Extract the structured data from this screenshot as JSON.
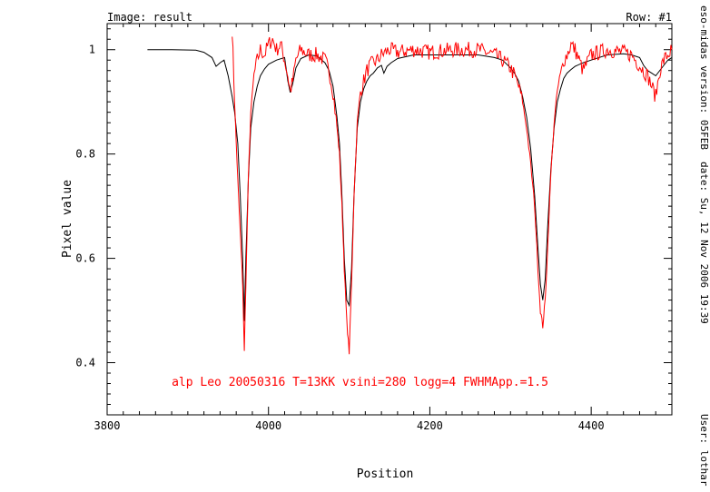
{
  "header": {
    "image_label": "Image: result",
    "row_label": "Row: #1"
  },
  "sidebar": {
    "version": "eso-midas version: 05FEB",
    "date": "date: Su, 12 Nov 2006 19:39",
    "user": "User: lothar"
  },
  "chart_data": {
    "type": "line",
    "xlabel": "Position",
    "ylabel": "Pixel value",
    "xlim": [
      3800,
      4500
    ],
    "ylim": [
      0.3,
      1.05
    ],
    "xticks": [
      3800,
      4000,
      4200,
      4400
    ],
    "xtick_labels": [
      "3800",
      "4000",
      "4200",
      "4400"
    ],
    "yticks": [
      0.4,
      0.6,
      0.8,
      1.0
    ],
    "ytick_labels": [
      "0.4",
      "0.6",
      "0.8",
      "1"
    ],
    "annotation": {
      "text": "alp Leo 20050316 T=13KK vsini=280 logg=4 FWHMApp.=1.5",
      "x": 3880,
      "y": 0.356,
      "color": "#ff0000"
    },
    "series": [
      {
        "color": "#000000",
        "x": [
          3850,
          3880,
          3910,
          3920,
          3930,
          3935,
          3940,
          3945,
          3950,
          3955,
          3958,
          3962,
          3965,
          3968,
          3970,
          3972,
          3975,
          3978,
          3982,
          3986,
          3990,
          3995,
          4000,
          4010,
          4020,
          4024,
          4027,
          4030,
          4034,
          4040,
          4050,
          4060,
          4070,
          4075,
          4080,
          4085,
          4088,
          4091,
          4094,
          4097,
          4100,
          4103,
          4106,
          4110,
          4114,
          4118,
          4122,
          4126,
          4130,
          4135,
          4140,
          4143,
          4147,
          4152,
          4160,
          4180,
          4200,
          4230,
          4260,
          4280,
          4290,
          4300,
          4305,
          4310,
          4315,
          4320,
          4325,
          4330,
          4334,
          4337,
          4340,
          4343,
          4346,
          4350,
          4354,
          4358,
          4362,
          4366,
          4370,
          4375,
          4380,
          4390,
          4400,
          4420,
          4440,
          4450,
          4460,
          4465,
          4470,
          4475,
          4480,
          4490,
          4495,
          4500
        ],
        "values": [
          1.0,
          1.0,
          0.999,
          0.995,
          0.985,
          0.968,
          0.975,
          0.98,
          0.95,
          0.91,
          0.88,
          0.82,
          0.72,
          0.6,
          0.48,
          0.6,
          0.75,
          0.85,
          0.9,
          0.93,
          0.95,
          0.963,
          0.972,
          0.98,
          0.985,
          0.94,
          0.918,
          0.935,
          0.965,
          0.983,
          0.99,
          0.988,
          0.975,
          0.96,
          0.93,
          0.87,
          0.82,
          0.72,
          0.6,
          0.52,
          0.51,
          0.58,
          0.72,
          0.85,
          0.9,
          0.925,
          0.94,
          0.95,
          0.955,
          0.965,
          0.97,
          0.955,
          0.968,
          0.975,
          0.983,
          0.99,
          0.99,
          0.99,
          0.99,
          0.985,
          0.98,
          0.965,
          0.955,
          0.94,
          0.91,
          0.87,
          0.81,
          0.72,
          0.62,
          0.55,
          0.52,
          0.56,
          0.66,
          0.77,
          0.85,
          0.9,
          0.925,
          0.945,
          0.955,
          0.962,
          0.968,
          0.975,
          0.98,
          0.99,
          0.992,
          0.99,
          0.985,
          0.97,
          0.96,
          0.955,
          0.95,
          0.97,
          0.98,
          0.985
        ]
      },
      {
        "color": "#ff0000",
        "x": [
          3955,
          3958,
          3960,
          3962,
          3965,
          3968,
          3970,
          3972,
          3975,
          3978,
          3982,
          3986,
          3990,
          3995,
          4000,
          4005,
          4010,
          4015,
          4020,
          4024,
          4027,
          4030,
          4034,
          4040,
          4050,
          4060,
          4070,
          4075,
          4080,
          4085,
          4088,
          4091,
          4094,
          4097,
          4100,
          4103,
          4106,
          4110,
          4114,
          4118,
          4122,
          4126,
          4130,
          4135,
          4140,
          4145,
          4150,
          4160,
          4180,
          4200,
          4230,
          4260,
          4280,
          4290,
          4300,
          4305,
          4310,
          4315,
          4320,
          4325,
          4330,
          4334,
          4337,
          4340,
          4343,
          4346,
          4350,
          4354,
          4358,
          4362,
          4366,
          4370,
          4375,
          4380,
          4385,
          4390,
          4400,
          4420,
          4440,
          4450,
          4460,
          4465,
          4470,
          4475,
          4480,
          4485,
          4490,
          4495,
          4500
        ],
        "values": [
          1.04,
          0.9,
          0.82,
          0.75,
          0.65,
          0.55,
          0.42,
          0.55,
          0.75,
          0.88,
          0.95,
          0.98,
          1.0,
          0.99,
          1.01,
          1.02,
          1.0,
          1.01,
          0.98,
          0.95,
          0.92,
          0.94,
          0.98,
          1.0,
          0.99,
          0.99,
          0.98,
          0.96,
          0.92,
          0.85,
          0.8,
          0.7,
          0.58,
          0.48,
          0.42,
          0.55,
          0.72,
          0.86,
          0.92,
          0.94,
          0.96,
          0.97,
          0.975,
          0.98,
          0.99,
          0.995,
          1.0,
          0.995,
          1.0,
          0.995,
          1.0,
          1.0,
          0.99,
          0.98,
          0.965,
          0.95,
          0.93,
          0.9,
          0.85,
          0.78,
          0.7,
          0.58,
          0.5,
          0.47,
          0.52,
          0.62,
          0.76,
          0.86,
          0.92,
          0.95,
          0.98,
          0.99,
          1.01,
          1.0,
          0.98,
          0.96,
          0.99,
          1.0,
          0.995,
          0.99,
          0.97,
          0.96,
          0.95,
          0.93,
          0.91,
          0.96,
          0.98,
          0.99,
          1.0
        ]
      }
    ]
  }
}
